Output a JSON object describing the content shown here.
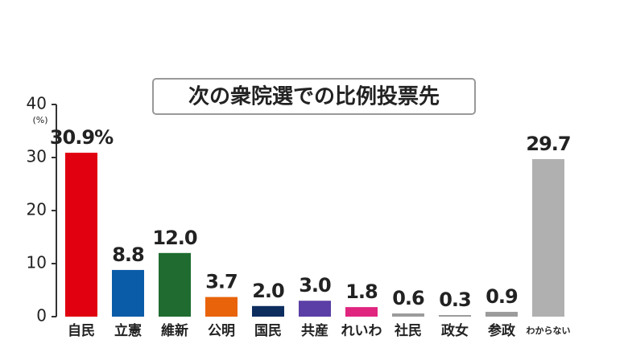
{
  "chart_data": {
    "type": "bar",
    "title": "次の衆院選での比例投票先",
    "y_unit": "(%)",
    "categories": [
      "自民",
      "立憲",
      "維新",
      "公明",
      "国民",
      "共産",
      "れいわ",
      "社民",
      "政女",
      "参政",
      "わからない"
    ],
    "values": [
      30.9,
      8.8,
      12.0,
      3.7,
      2.0,
      3.0,
      1.8,
      0.6,
      0.3,
      0.9,
      29.7
    ],
    "value_labels": [
      "30.9%",
      "8.8",
      "12.0",
      "3.7",
      "2.0",
      "3.0",
      "1.8",
      "0.6",
      "0.3",
      "0.9",
      "29.7"
    ],
    "colors": [
      "#e0000f",
      "#0a5ca8",
      "#1f6b30",
      "#e8630a",
      "#0d2d5e",
      "#5b3fa6",
      "#e0257f",
      "#9b9b9b",
      "#9b9b9b",
      "#9b9b9b",
      "#b0b0b0"
    ],
    "ylim": [
      0,
      40
    ],
    "yticks": [
      0,
      10,
      20,
      30,
      40
    ]
  }
}
